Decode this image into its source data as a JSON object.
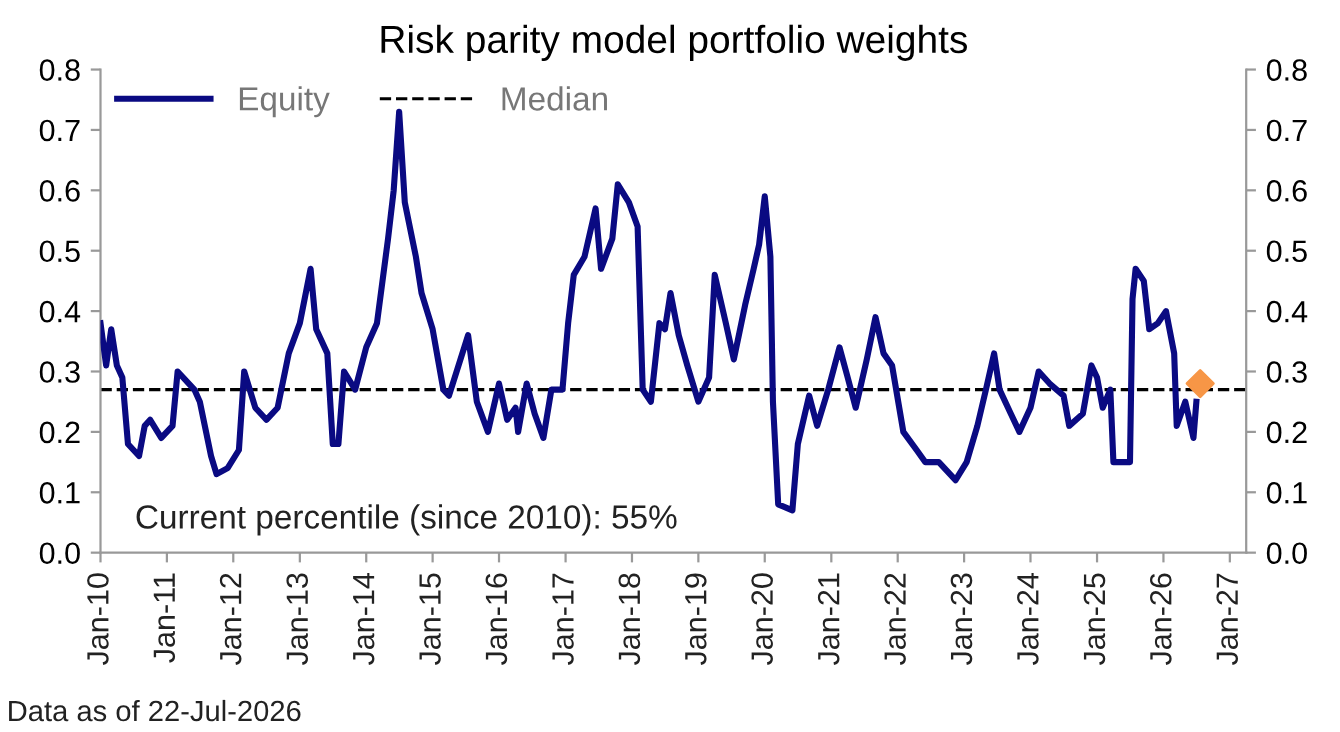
{
  "chart_data": {
    "type": "line",
    "title": "Risk parity model portfolio weights",
    "x": [
      "2010-01-01",
      "2010-02-01",
      "2010-03-01",
      "2010-04-01",
      "2010-05-01",
      "2010-06-01",
      "2010-08-01",
      "2010-09-01",
      "2010-10-01",
      "2010-12-01",
      "2011-02-01",
      "2011-03-01",
      "2011-06-01",
      "2011-07-01",
      "2011-09-01",
      "2011-10-01",
      "2011-12-01",
      "2012-02-01",
      "2012-03-01",
      "2012-05-01",
      "2012-07-01",
      "2012-09-01",
      "2012-11-01",
      "2013-01-01",
      "2013-03-01",
      "2013-04-01",
      "2013-06-01",
      "2013-07-01",
      "2013-08-01",
      "2013-09-01",
      "2013-11-01",
      "2014-01-01",
      "2014-03-01",
      "2014-05-01",
      "2014-06-01",
      "2014-07-01",
      "2014-08-01",
      "2014-10-01",
      "2014-11-01",
      "2015-01-01",
      "2015-03-01",
      "2015-04-01",
      "2015-07-15",
      "2015-09-01",
      "2015-11-01",
      "2016-01-01",
      "2016-02-15",
      "2016-04-01",
      "2016-04-15",
      "2016-06-01",
      "2016-07-15",
      "2016-09-01",
      "2016-10-15",
      "2016-12-15",
      "2017-01-15",
      "2017-02-15",
      "2017-04-15",
      "2017-06-15",
      "2017-07-15",
      "2017-09-15",
      "2017-10-15",
      "2017-12-15",
      "2018-02-01",
      "2018-03-01",
      "2018-04-15",
      "2018-06-01",
      "2018-07-01",
      "2018-08-01",
      "2018-09-15",
      "2018-11-01",
      "2019-01-01",
      "2019-03-01",
      "2019-04-01",
      "2019-06-01",
      "2019-07-15",
      "2019-09-15",
      "2019-11-01",
      "2019-12-01",
      "2020-01-01",
      "2020-02-01",
      "2020-02-15",
      "2020-03-15",
      "2020-06-01",
      "2020-07-01",
      "2020-09-01",
      "2020-10-15",
      "2020-12-15",
      "2021-02-15",
      "2021-04-01",
      "2021-05-15",
      "2021-07-15",
      "2021-09-01",
      "2021-10-15",
      "2021-12-01",
      "2022-02-01",
      "2022-04-15",
      "2022-06-01",
      "2022-08-15",
      "2022-11-15",
      "2023-01-15",
      "2023-03-15",
      "2023-05-01",
      "2023-06-15",
      "2023-07-15",
      "2023-09-15",
      "2023-11-01",
      "2024-01-01",
      "2024-02-15",
      "2024-04-15",
      "2024-07-01",
      "2024-08-01",
      "2024-10-15",
      "2024-12-01",
      "2025-01-01",
      "2025-02-01",
      "2025-03-15",
      "2025-04-01",
      "2025-07-01",
      "2025-07-15",
      "2025-08-01",
      "2025-09-15",
      "2025-10-15",
      "2025-12-01",
      "2026-01-15",
      "2026-03-01",
      "2026-03-15",
      "2026-05-01",
      "2026-06-15",
      "2026-07-01"
    ],
    "series": [
      {
        "name": "Equity",
        "color": "#0a0a82",
        "values": [
          0.38,
          0.31,
          0.37,
          0.31,
          0.29,
          0.18,
          0.16,
          0.21,
          0.22,
          0.19,
          0.21,
          0.3,
          0.27,
          0.25,
          0.16,
          0.13,
          0.14,
          0.17,
          0.3,
          0.24,
          0.22,
          0.24,
          0.33,
          0.38,
          0.47,
          0.37,
          0.33,
          0.18,
          0.18,
          0.3,
          0.27,
          0.34,
          0.38,
          0.52,
          0.6,
          0.73,
          0.58,
          0.49,
          0.43,
          0.37,
          0.27,
          0.26,
          0.36,
          0.25,
          0.2,
          0.28,
          0.22,
          0.24,
          0.2,
          0.28,
          0.23,
          0.19,
          0.27,
          0.27,
          0.38,
          0.46,
          0.49,
          0.57,
          0.47,
          0.52,
          0.61,
          0.58,
          0.54,
          0.27,
          0.25,
          0.38,
          0.37,
          0.43,
          0.36,
          0.31,
          0.25,
          0.29,
          0.46,
          0.38,
          0.32,
          0.41,
          0.47,
          0.51,
          0.59,
          0.49,
          0.25,
          0.08,
          0.07,
          0.18,
          0.26,
          0.21,
          0.27,
          0.34,
          0.29,
          0.24,
          0.32,
          0.39,
          0.33,
          0.31,
          0.2,
          0.17,
          0.15,
          0.15,
          0.12,
          0.15,
          0.21,
          0.27,
          0.33,
          0.27,
          0.23,
          0.2,
          0.24,
          0.3,
          0.28,
          0.26,
          0.21,
          0.23,
          0.31,
          0.29,
          0.24,
          0.27,
          0.15,
          0.15,
          0.42,
          0.47,
          0.45,
          0.37,
          0.38,
          0.4,
          0.33,
          0.21,
          0.25,
          0.19,
          0.25
        ]
      },
      {
        "type": "scatter",
        "marker": "diamond",
        "color": "#f79646",
        "x": [
          "2026-07-22"
        ],
        "values": [
          0.28
        ]
      }
    ],
    "ref_lines": [
      {
        "axis": "y",
        "value": 0.27,
        "label": "Median",
        "color": "#000000",
        "line_style": "dashed"
      }
    ],
    "annotations": [
      "Current percentile (since 2010): 55%",
      "Data as of 22-Jul-2026"
    ],
    "xlim": [
      "2010-01-01",
      "2027-04-01"
    ],
    "xticks": [
      {
        "value": "2010-01-01",
        "label": "Jan-10"
      },
      {
        "value": "2011-01-01",
        "label": "Jan-11"
      },
      {
        "value": "2012-01-01",
        "label": "Jan-12"
      },
      {
        "value": "2013-01-01",
        "label": "Jan-13"
      },
      {
        "value": "2014-01-01",
        "label": "Jan-14"
      },
      {
        "value": "2015-01-01",
        "label": "Jan-15"
      },
      {
        "value": "2016-01-01",
        "label": "Jan-16"
      },
      {
        "value": "2017-01-01",
        "label": "Jan-17"
      },
      {
        "value": "2018-01-01",
        "label": "Jan-18"
      },
      {
        "value": "2019-01-01",
        "label": "Jan-19"
      },
      {
        "value": "2020-01-01",
        "label": "Jan-20"
      },
      {
        "value": "2021-01-01",
        "label": "Jan-21"
      },
      {
        "value": "2022-01-01",
        "label": "Jan-22"
      },
      {
        "value": "2023-01-01",
        "label": "Jan-23"
      },
      {
        "value": "2024-01-01",
        "label": "Jan-24"
      },
      {
        "value": "2025-01-01",
        "label": "Jan-25"
      },
      {
        "value": "2026-01-01",
        "label": "Jan-26"
      },
      {
        "value": "2027-01-01",
        "label": "Jan-27"
      }
    ],
    "ylim": [
      0,
      0.8
    ],
    "yticks": [
      {
        "value": 0,
        "label": "0.0"
      },
      {
        "value": 0.1,
        "label": "0.1"
      },
      {
        "value": 0.2,
        "label": "0.2"
      },
      {
        "value": 0.3,
        "label": "0.3"
      },
      {
        "value": 0.4,
        "label": "0.4"
      },
      {
        "value": 0.5,
        "label": "0.5"
      },
      {
        "value": 0.6,
        "label": "0.6"
      },
      {
        "value": 0.7,
        "label": "0.7"
      },
      {
        "value": 0.8,
        "label": "0.8"
      }
    ],
    "y2lim": [
      0,
      0.8
    ],
    "y2ticks": [
      {
        "value": 0,
        "label": "0.0"
      },
      {
        "value": 0.1,
        "label": "0.1"
      },
      {
        "value": 0.2,
        "label": "0.2"
      },
      {
        "value": 0.3,
        "label": "0.3"
      },
      {
        "value": 0.4,
        "label": "0.4"
      },
      {
        "value": 0.5,
        "label": "0.5"
      },
      {
        "value": 0.6,
        "label": "0.6"
      },
      {
        "value": 0.7,
        "label": "0.7"
      },
      {
        "value": 0.8,
        "label": "0.8"
      }
    ],
    "legend": "top left",
    "grid": false
  }
}
